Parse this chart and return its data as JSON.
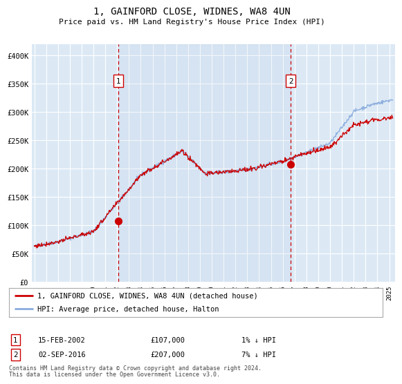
{
  "title": "1, GAINFORD CLOSE, WIDNES, WA8 4UN",
  "subtitle": "Price paid vs. HM Land Registry's House Price Index (HPI)",
  "ylabel_ticks": [
    "£0",
    "£50K",
    "£100K",
    "£150K",
    "£200K",
    "£250K",
    "£300K",
    "£350K",
    "£400K"
  ],
  "ytick_values": [
    0,
    50000,
    100000,
    150000,
    200000,
    250000,
    300000,
    350000,
    400000
  ],
  "ylim": [
    0,
    420000
  ],
  "xlim_start": 1994.8,
  "xlim_end": 2025.5,
  "background_color": "#dce9f5",
  "plot_bg_color": "#dce9f5",
  "grid_color": "#ffffff",
  "marker1_date": 2002.12,
  "marker1_price": 107000,
  "marker1_label": "15-FEB-2002",
  "marker1_amount": "£107,000",
  "marker1_note": "1% ↓ HPI",
  "marker2_date": 2016.67,
  "marker2_price": 207000,
  "marker2_label": "02-SEP-2016",
  "marker2_amount": "£207,000",
  "marker2_note": "7% ↓ HPI",
  "legend_label1": "1, GAINFORD CLOSE, WIDNES, WA8 4UN (detached house)",
  "legend_label2": "HPI: Average price, detached house, Halton",
  "line1_color": "#cc0000",
  "line2_color": "#88aadd",
  "footer_line1": "Contains HM Land Registry data © Crown copyright and database right 2024.",
  "footer_line2": "This data is licensed under the Open Government Licence v3.0.",
  "xtick_years": [
    1995,
    1996,
    1997,
    1998,
    1999,
    2000,
    2001,
    2002,
    2003,
    2004,
    2005,
    2006,
    2007,
    2008,
    2009,
    2010,
    2011,
    2012,
    2013,
    2014,
    2015,
    2016,
    2017,
    2018,
    2019,
    2020,
    2021,
    2022,
    2023,
    2024,
    2025
  ]
}
